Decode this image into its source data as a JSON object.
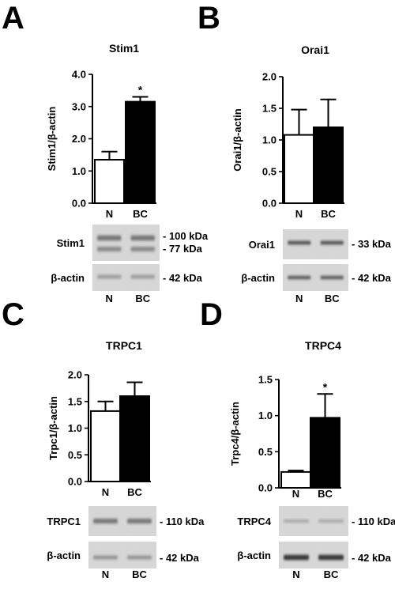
{
  "chart_data": [
    {
      "panel": "A",
      "type": "bar",
      "title": "Stim1",
      "ylabel": "Stim1/β-actin",
      "categories": [
        "N",
        "BC"
      ],
      "values": [
        1.35,
        3.15
      ],
      "errors": [
        0.25,
        0.15
      ],
      "ylim": [
        0,
        4.0
      ],
      "yticks": [
        "0.0",
        "1.0",
        "2.0",
        "3.0",
        "4.0"
      ],
      "significance": [
        "",
        "*"
      ],
      "blot": {
        "rows": [
          {
            "label": "Stim1",
            "markers": [
              "- 100 kDa",
              "- 77 kDa"
            ]
          },
          {
            "label": "β-actin",
            "markers": [
              "- 42 kDa"
            ]
          }
        ],
        "lanes": [
          "N",
          "BC"
        ]
      }
    },
    {
      "panel": "B",
      "type": "bar",
      "title": "Orai1",
      "ylabel": "Orai1/β-actin",
      "categories": [
        "N",
        "BC"
      ],
      "values": [
        1.08,
        1.2
      ],
      "errors": [
        0.4,
        0.44
      ],
      "ylim": [
        0,
        2.0
      ],
      "yticks": [
        "0.0",
        "0.5",
        "1.0",
        "1.5",
        "2.0"
      ],
      "significance": [
        "",
        ""
      ],
      "blot": {
        "rows": [
          {
            "label": "Orai1",
            "markers": [
              "- 33 kDa"
            ]
          },
          {
            "label": "β-actin",
            "markers": [
              "- 42 kDa"
            ]
          }
        ],
        "lanes": [
          "N",
          "BC"
        ]
      }
    },
    {
      "panel": "C",
      "type": "bar",
      "title": "TRPC1",
      "ylabel": "Trpc1/β-actin",
      "categories": [
        "N",
        "BC"
      ],
      "values": [
        1.32,
        1.6
      ],
      "errors": [
        0.18,
        0.26
      ],
      "ylim": [
        0,
        2.0
      ],
      "yticks": [
        "0.0",
        "0.5",
        "1.0",
        "1.5",
        "2.0"
      ],
      "significance": [
        "",
        ""
      ],
      "blot": {
        "rows": [
          {
            "label": "TRPC1",
            "markers": [
              "- 110 kDa"
            ]
          },
          {
            "label": "β-actin",
            "markers": [
              "- 42 kDa"
            ]
          }
        ],
        "lanes": [
          "N",
          "BC"
        ]
      }
    },
    {
      "panel": "D",
      "type": "bar",
      "title": "TRPC4",
      "ylabel": "Trpc4/β-actin",
      "categories": [
        "N",
        "BC"
      ],
      "values": [
        0.22,
        0.97
      ],
      "errors": [
        0.02,
        0.33
      ],
      "ylim": [
        0,
        1.5
      ],
      "yticks": [
        "0.0",
        "0.5",
        "1.0",
        "1.5"
      ],
      "significance": [
        "",
        "*"
      ],
      "blot": {
        "rows": [
          {
            "label": "TRPC4",
            "markers": [
              "- 110 kDa"
            ]
          },
          {
            "label": "β-actin",
            "markers": [
              "- 42 kDa"
            ]
          }
        ],
        "lanes": [
          "N",
          "BC"
        ]
      }
    }
  ],
  "colors": {
    "bar_N": "#ffffff",
    "bar_BC": "#000000",
    "axis": "#000000"
  }
}
